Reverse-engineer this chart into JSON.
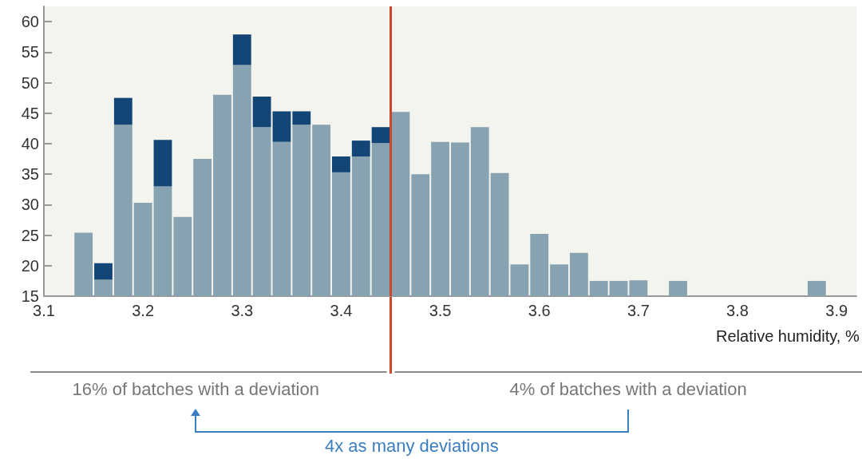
{
  "chart_data": {
    "type": "bar",
    "xlabel": "Relative humidity, %",
    "x": [
      3.14,
      3.16,
      3.18,
      3.2,
      3.22,
      3.24,
      3.26,
      3.28,
      3.3,
      3.32,
      3.34,
      3.36,
      3.38,
      3.4,
      3.42,
      3.44,
      3.46,
      3.48,
      3.5,
      3.52,
      3.54,
      3.56,
      3.58,
      3.6,
      3.62,
      3.64,
      3.66,
      3.68,
      3.7,
      3.72,
      3.74,
      3.76,
      3.78,
      3.8,
      3.82,
      3.84,
      3.86,
      3.88
    ],
    "series": [
      {
        "color": "#87a3b1",
        "values": [
          25.4,
          17.7,
          43.1,
          30.3,
          33.0,
          28.0,
          37.5,
          48.0,
          52.9,
          42.7,
          40.3,
          43.1,
          43.1,
          35.3,
          37.9,
          40.1,
          45.2,
          35.0,
          40.3,
          40.2,
          42.7,
          35.2,
          20.2,
          25.2,
          20.2,
          22.1,
          17.5,
          17.5,
          17.6,
          null,
          17.5,
          null,
          null,
          null,
          null,
          null,
          null,
          17.5
        ]
      },
      {
        "color": "#134677",
        "base": [
          null,
          17.7,
          43.1,
          null,
          33.0,
          null,
          null,
          null,
          52.9,
          42.7,
          40.3,
          43.1,
          null,
          35.3,
          37.9,
          40.1,
          null,
          null,
          null,
          null,
          null,
          null,
          null,
          null,
          null,
          null,
          null,
          null,
          null,
          null,
          null,
          null,
          null,
          null,
          null,
          null,
          null,
          null
        ],
        "values": [
          null,
          2.7,
          4.4,
          null,
          7.6,
          null,
          null,
          null,
          5.0,
          5.0,
          5.0,
          2.2,
          null,
          2.6,
          2.6,
          2.6,
          null,
          null,
          null,
          null,
          null,
          null,
          null,
          null,
          null,
          null,
          null,
          null,
          null,
          null,
          null,
          null,
          null,
          null,
          null,
          null,
          null,
          null
        ]
      }
    ],
    "xlim": [
      3.1,
      3.92
    ],
    "xticks": [
      3.1,
      3.2,
      3.3,
      3.4,
      3.5,
      3.6,
      3.7,
      3.8,
      3.9
    ],
    "ylim": [
      15,
      62.5
    ],
    "yticks": [
      15,
      20,
      25,
      30,
      35,
      40,
      45,
      50,
      55,
      60
    ],
    "grid": false,
    "ref_lines": [
      {
        "axis": "x",
        "value": 3.45,
        "color": "#d0452a"
      }
    ],
    "annotations": [
      "16% of batches with a deviation",
      "4% of batches with a deviation",
      "4x as many deviations"
    ]
  }
}
